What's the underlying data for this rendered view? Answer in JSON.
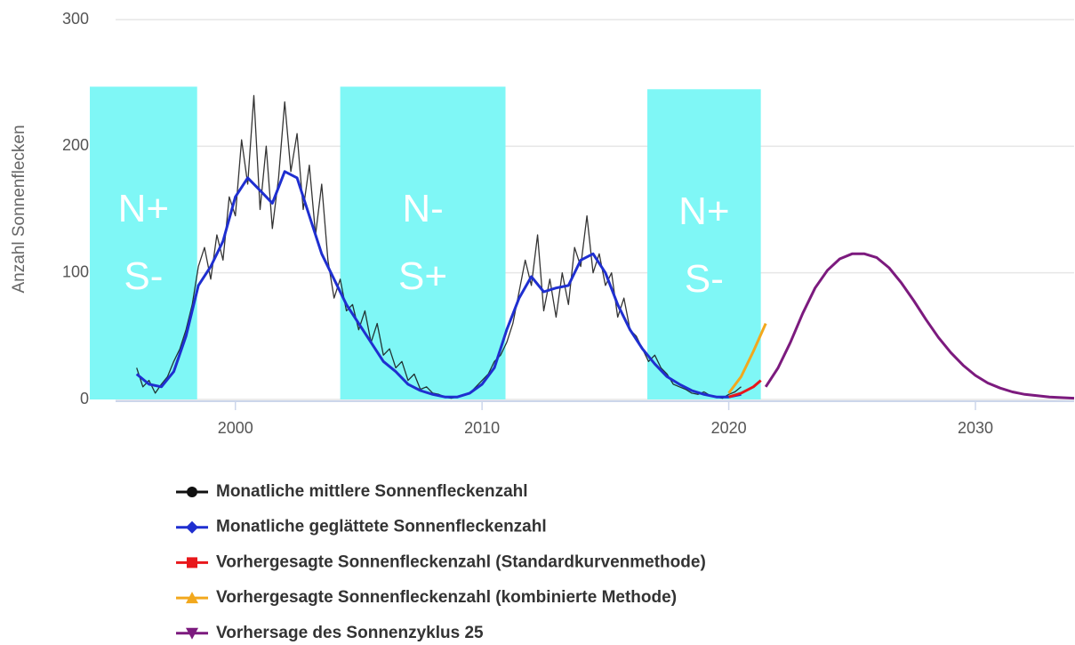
{
  "chart_data": {
    "type": "line",
    "y_label": "Anzahl Sonnenflecken",
    "xlim": [
      1995,
      2034
    ],
    "xticks": [
      2000,
      2010,
      2020,
      2030
    ],
    "ylim": [
      0,
      300
    ],
    "yticks": [
      0,
      100,
      200,
      300
    ],
    "grid": true,
    "bands": [
      {
        "x0": 1994.1,
        "x1": 1998.45,
        "ytop": 247,
        "color": "#7ff7f6",
        "label": [
          "N+",
          "S-"
        ]
      },
      {
        "x0": 2004.25,
        "x1": 2010.95,
        "ytop": 247,
        "color": "#7ff7f6",
        "label": [
          "N-",
          "S+"
        ]
      },
      {
        "x0": 2016.7,
        "x1": 2021.3,
        "ytop": 245,
        "color": "#7ff7f6",
        "label": [
          "N+",
          "S-"
        ]
      }
    ],
    "series": [
      {
        "name": "Monatliche mittlere Sonnenfleckenzahl",
        "color": "#111111",
        "marker": "circle",
        "width": 1.3,
        "x": [
          1996.0,
          1996.25,
          1996.5,
          1996.75,
          1997.0,
          1997.25,
          1997.5,
          1997.75,
          1998.0,
          1998.25,
          1998.5,
          1998.75,
          1999.0,
          1999.25,
          1999.5,
          1999.75,
          2000.0,
          2000.25,
          2000.5,
          2000.75,
          2001.0,
          2001.25,
          2001.5,
          2001.75,
          2002.0,
          2002.25,
          2002.5,
          2002.75,
          2003.0,
          2003.25,
          2003.5,
          2003.75,
          2004.0,
          2004.25,
          2004.5,
          2004.75,
          2005.0,
          2005.25,
          2005.5,
          2005.75,
          2006.0,
          2006.25,
          2006.5,
          2006.75,
          2007.0,
          2007.25,
          2007.5,
          2007.75,
          2008.0,
          2008.25,
          2008.5,
          2008.75,
          2009.0,
          2009.25,
          2009.5,
          2009.75,
          2010.0,
          2010.25,
          2010.5,
          2010.75,
          2011.0,
          2011.25,
          2011.5,
          2011.75,
          2012.0,
          2012.25,
          2012.5,
          2012.75,
          2013.0,
          2013.25,
          2013.5,
          2013.75,
          2014.0,
          2014.25,
          2014.5,
          2014.75,
          2015.0,
          2015.25,
          2015.5,
          2015.75,
          2016.0,
          2016.25,
          2016.5,
          2016.75,
          2017.0,
          2017.25,
          2017.5,
          2017.75,
          2018.0,
          2018.25,
          2018.5,
          2018.75,
          2019.0,
          2019.25,
          2019.5,
          2019.75,
          2020.0,
          2020.25,
          2020.5
        ],
        "values": [
          25,
          10,
          15,
          5,
          12,
          18,
          30,
          40,
          55,
          75,
          105,
          120,
          95,
          130,
          110,
          160,
          145,
          205,
          170,
          240,
          150,
          200,
          135,
          175,
          235,
          180,
          210,
          150,
          185,
          130,
          170,
          110,
          80,
          95,
          70,
          75,
          55,
          70,
          45,
          60,
          35,
          40,
          25,
          30,
          15,
          20,
          8,
          10,
          5,
          4,
          2,
          1,
          2,
          3,
          5,
          10,
          15,
          20,
          30,
          35,
          45,
          60,
          85,
          110,
          90,
          130,
          70,
          95,
          65,
          100,
          75,
          120,
          105,
          145,
          100,
          115,
          90,
          100,
          65,
          80,
          55,
          50,
          40,
          30,
          35,
          25,
          20,
          12,
          10,
          8,
          5,
          4,
          6,
          3,
          2,
          1,
          4,
          6,
          10
        ]
      },
      {
        "name": "Monatliche geglättete Sonnenfleckenzahl",
        "color": "#1f2fd0",
        "marker": "diamond",
        "width": 3,
        "x": [
          1996,
          1996.5,
          1997,
          1997.5,
          1998,
          1998.5,
          1999,
          1999.5,
          2000,
          2000.5,
          2001,
          2001.5,
          2002,
          2002.5,
          2003,
          2003.5,
          2004,
          2004.5,
          2005,
          2005.5,
          2006,
          2006.5,
          2007,
          2007.5,
          2008,
          2008.5,
          2009,
          2009.5,
          2010,
          2010.5,
          2011,
          2011.5,
          2012,
          2012.5,
          2013,
          2013.5,
          2014,
          2014.5,
          2015,
          2015.5,
          2016,
          2016.5,
          2017,
          2017.5,
          2018,
          2018.5,
          2019,
          2019.5,
          2020,
          2020.5
        ],
        "values": [
          20,
          12,
          10,
          22,
          50,
          90,
          105,
          125,
          160,
          175,
          165,
          155,
          180,
          175,
          145,
          115,
          95,
          75,
          60,
          45,
          30,
          22,
          12,
          7,
          4,
          2,
          2,
          5,
          12,
          25,
          55,
          80,
          97,
          85,
          88,
          90,
          110,
          115,
          100,
          75,
          55,
          40,
          28,
          18,
          12,
          7,
          4,
          2,
          2,
          4
        ]
      },
      {
        "name": "Vorhergesagte Sonnenfleckenzahl (Standardkurvenmethode)",
        "color": "#e8171b",
        "marker": "square",
        "width": 3,
        "x": [
          2020,
          2020.5,
          2021,
          2021.3
        ],
        "values": [
          2,
          5,
          10,
          15
        ]
      },
      {
        "name": "Vorhergesagte Sonnenfleckenzahl (kombinierte Methode)",
        "color": "#f2a81d",
        "marker": "triangle-up",
        "width": 3,
        "x": [
          2020,
          2020.5,
          2021,
          2021.5
        ],
        "values": [
          5,
          18,
          38,
          60
        ]
      },
      {
        "name": "Vorhersage des Sonnenzyklus 25",
        "color": "#7c1a7e",
        "marker": "triangle-down",
        "width": 3,
        "x": [
          2021.5,
          2022,
          2022.5,
          2023,
          2023.5,
          2024,
          2024.5,
          2025,
          2025.5,
          2026,
          2026.5,
          2027,
          2027.5,
          2028,
          2028.5,
          2029,
          2029.5,
          2030,
          2030.5,
          2031,
          2031.5,
          2032,
          2032.5,
          2033,
          2034
        ],
        "values": [
          10,
          25,
          45,
          68,
          88,
          102,
          111,
          115,
          115,
          112,
          104,
          92,
          78,
          63,
          49,
          37,
          27,
          19,
          13,
          9,
          6,
          4,
          3,
          2,
          1
        ]
      }
    ]
  }
}
